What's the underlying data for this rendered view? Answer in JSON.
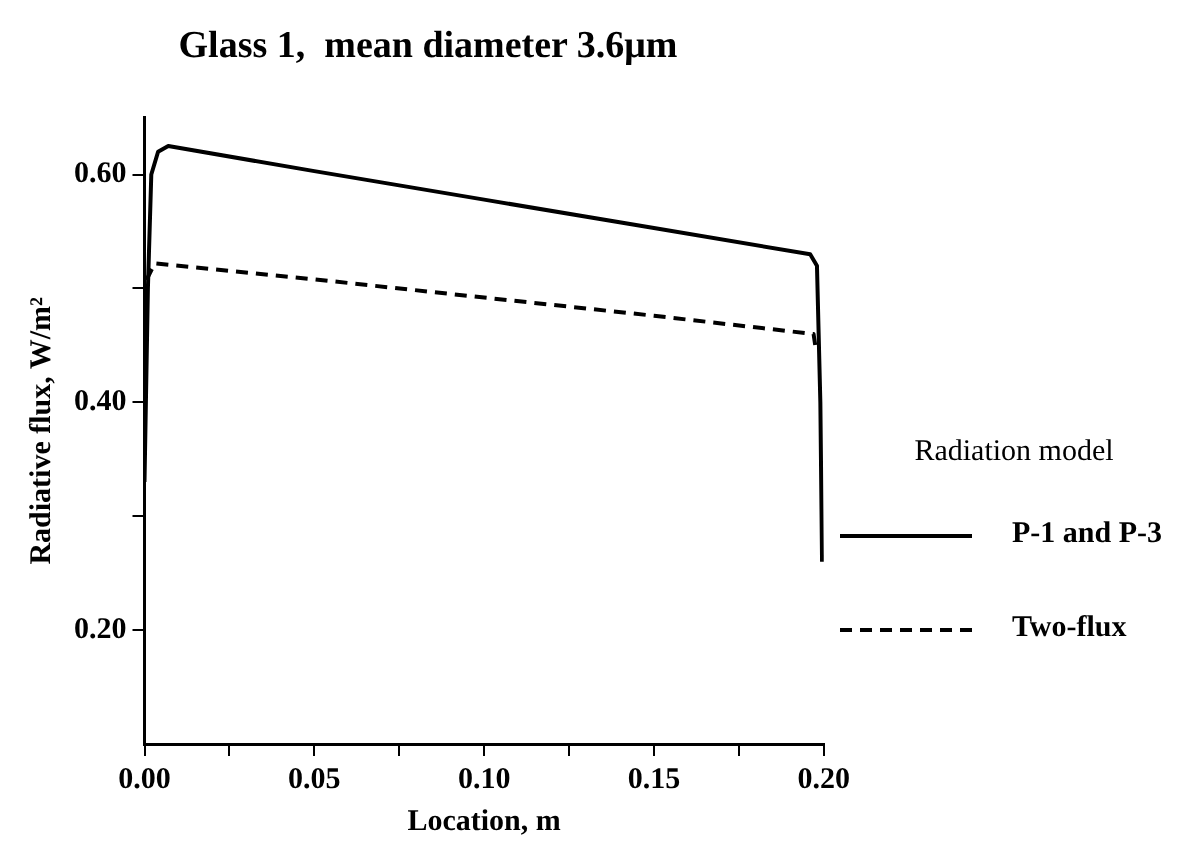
{
  "chart_data": {
    "type": "line",
    "title": "Glass 1,  mean diameter 3.6μm",
    "xlabel": "Location, m",
    "ylabel": "Radiative flux, W/m²",
    "legend_title": "Radiation model",
    "legend": "right",
    "grid": false,
    "marker": "none",
    "xlim": [
      0,
      0.2
    ],
    "ylim": [
      0.1,
      0.65
    ],
    "xticks": [
      {
        "value": 0,
        "label": "0.00"
      },
      {
        "value": 0.025,
        "label": null
      },
      {
        "value": 0.05,
        "label": "0.05"
      },
      {
        "value": 0.075,
        "label": null
      },
      {
        "value": 0.1,
        "label": "0.10"
      },
      {
        "value": 0.125,
        "label": null
      },
      {
        "value": 0.15,
        "label": "0.15"
      },
      {
        "value": 0.175,
        "label": null
      },
      {
        "value": 0.2,
        "label": "0.20"
      }
    ],
    "yticks": [
      {
        "value": 0.2,
        "label": "0.20"
      },
      {
        "value": 0.3,
        "label": null
      },
      {
        "value": 0.4,
        "label": "0.40"
      },
      {
        "value": 0.5,
        "label": null
      },
      {
        "value": 0.6,
        "label": "0.60"
      }
    ],
    "series": [
      {
        "name": "P-1 and P-3",
        "color": "#000000",
        "line_style": "solid",
        "x": [
          0,
          0.001,
          0.002,
          0.004,
          0.007,
          0.05,
          0.1,
          0.15,
          0.196,
          0.198,
          0.199,
          0.1995
        ],
        "values": [
          0.33,
          0.5,
          0.6,
          0.62,
          0.625,
          0.603,
          0.578,
          0.553,
          0.53,
          0.52,
          0.4,
          0.26
        ]
      },
      {
        "name": "Two-flux",
        "color": "#000000",
        "line_style": "dashed",
        "x": [
          0,
          0.001,
          0.003,
          0.05,
          0.1,
          0.15,
          0.197,
          0.1975
        ],
        "values": [
          0.49,
          0.51,
          0.522,
          0.508,
          0.492,
          0.476,
          0.46,
          0.45
        ]
      }
    ]
  }
}
